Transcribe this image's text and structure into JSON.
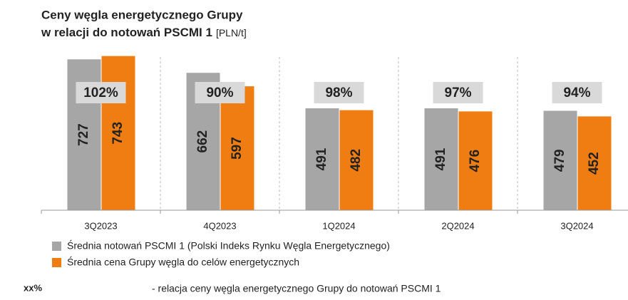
{
  "chart_data": {
    "type": "bar",
    "title": [
      "Ceny węgla energetycznego Grupy",
      "w relacji do notowań PSCMI 1"
    ],
    "unit": "[PLN/t]",
    "categories": [
      "3Q2023",
      "4Q2023",
      "1Q2024",
      "2Q2024",
      "3Q2024"
    ],
    "series": [
      {
        "name": "Średnia notowań PSCMI 1 (Polski Indeks Rynku Węgla Energetycznego)",
        "color": "#a6a6a6",
        "values": [
          727,
          662,
          491,
          491,
          479
        ]
      },
      {
        "name": "Średnia cena Grupy węgla do celów energetycznych",
        "color": "#f07d12",
        "values": [
          743,
          597,
          482,
          476,
          452
        ]
      }
    ],
    "annotations": [
      "102%",
      "90%",
      "98%",
      "97%",
      "94%"
    ],
    "annotation_key": "xx%",
    "annotation_note": "- relacja ceny węgla energetycznego Grupy do notowań PSCMI 1",
    "ylim": [
      0,
      800
    ]
  }
}
